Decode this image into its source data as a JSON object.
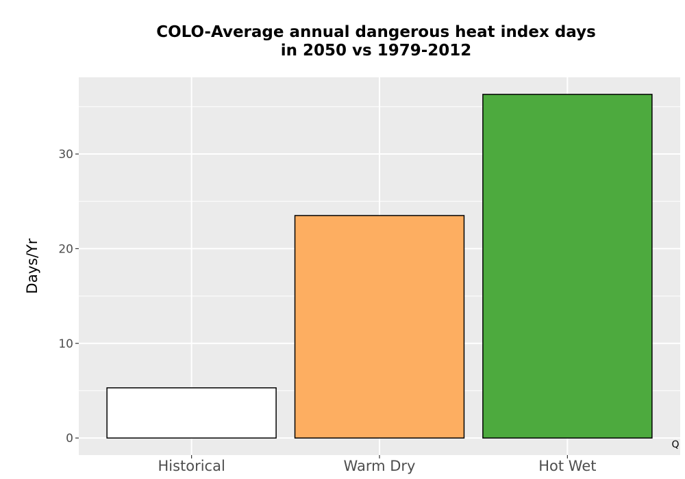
{
  "chart_data": {
    "type": "bar",
    "title_lines": [
      "COLO-Average annual dangerous heat index days",
      "in 2050 vs 1979-2012"
    ],
    "xlabel": "",
    "ylabel": "Days/Yr",
    "categories": [
      "Historical",
      "Warm Dry",
      "Hot Wet"
    ],
    "values": [
      5.3,
      23.5,
      36.3
    ],
    "colors": [
      "#ffffff",
      "#fdae61",
      "#4daa3e"
    ],
    "ylim": [
      -1.8,
      38.1
    ],
    "yticks": [
      0,
      10,
      20,
      30
    ],
    "grid": true,
    "background": "#ebebeb"
  },
  "corner_mark": "Q"
}
